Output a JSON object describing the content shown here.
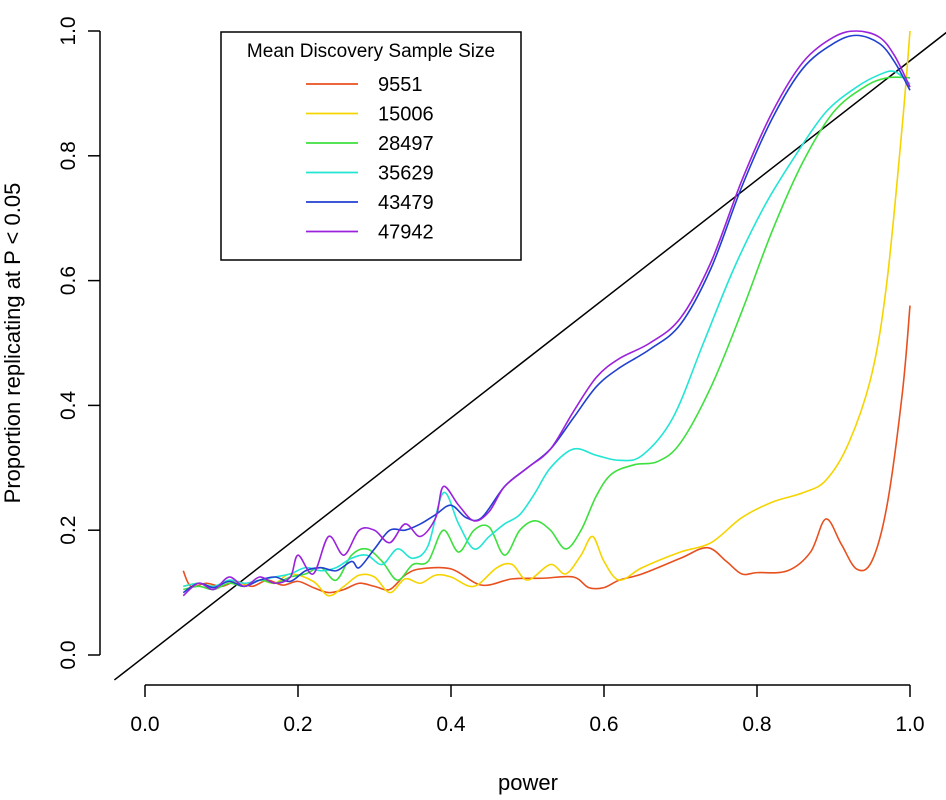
{
  "chart_data": {
    "type": "line",
    "title": "",
    "xlabel": "power",
    "ylabel": "Proportion replicating at P < 0.05",
    "xlim": [
      0.0,
      1.0
    ],
    "ylim": [
      0.0,
      1.0
    ],
    "x_ticks": [
      "0.0",
      "0.2",
      "0.4",
      "0.6",
      "0.8",
      "1.0"
    ],
    "y_ticks": [
      "0.0",
      "0.2",
      "0.4",
      "0.6",
      "0.8",
      "1.0"
    ],
    "grid": false,
    "legend": {
      "title": "Mean Discovery Sample Size",
      "placement": "top-left"
    },
    "reference_line": {
      "label": "",
      "from": [
        -0.04,
        -0.04
      ],
      "to": [
        1.05,
        1.0
      ],
      "color": "#000000"
    },
    "series": [
      {
        "name": "9551",
        "color": "#e8501f",
        "points": [
          [
            0.05,
            0.135
          ],
          [
            0.06,
            0.11
          ],
          [
            0.08,
            0.115
          ],
          [
            0.1,
            0.11
          ],
          [
            0.12,
            0.118
          ],
          [
            0.14,
            0.11
          ],
          [
            0.16,
            0.12
          ],
          [
            0.18,
            0.112
          ],
          [
            0.2,
            0.118
          ],
          [
            0.22,
            0.108
          ],
          [
            0.24,
            0.1
          ],
          [
            0.26,
            0.105
          ],
          [
            0.28,
            0.115
          ],
          [
            0.3,
            0.11
          ],
          [
            0.32,
            0.105
          ],
          [
            0.34,
            0.128
          ],
          [
            0.36,
            0.138
          ],
          [
            0.4,
            0.138
          ],
          [
            0.44,
            0.112
          ],
          [
            0.48,
            0.122
          ],
          [
            0.52,
            0.123
          ],
          [
            0.56,
            0.125
          ],
          [
            0.58,
            0.108
          ],
          [
            0.6,
            0.108
          ],
          [
            0.62,
            0.12
          ],
          [
            0.65,
            0.13
          ],
          [
            0.7,
            0.155
          ],
          [
            0.735,
            0.172
          ],
          [
            0.76,
            0.15
          ],
          [
            0.78,
            0.13
          ],
          [
            0.8,
            0.132
          ],
          [
            0.84,
            0.135
          ],
          [
            0.87,
            0.165
          ],
          [
            0.89,
            0.218
          ],
          [
            0.91,
            0.178
          ],
          [
            0.93,
            0.138
          ],
          [
            0.95,
            0.15
          ],
          [
            0.97,
            0.24
          ],
          [
            0.99,
            0.42
          ],
          [
            1.0,
            0.56
          ]
        ]
      },
      {
        "name": "15006",
        "color": "#f5d400",
        "points": [
          [
            0.05,
            0.11
          ],
          [
            0.07,
            0.115
          ],
          [
            0.09,
            0.11
          ],
          [
            0.11,
            0.118
          ],
          [
            0.13,
            0.112
          ],
          [
            0.15,
            0.12
          ],
          [
            0.17,
            0.115
          ],
          [
            0.19,
            0.13
          ],
          [
            0.22,
            0.118
          ],
          [
            0.24,
            0.095
          ],
          [
            0.26,
            0.11
          ],
          [
            0.28,
            0.128
          ],
          [
            0.3,
            0.125
          ],
          [
            0.32,
            0.1
          ],
          [
            0.34,
            0.122
          ],
          [
            0.36,
            0.115
          ],
          [
            0.38,
            0.128
          ],
          [
            0.4,
            0.125
          ],
          [
            0.43,
            0.11
          ],
          [
            0.46,
            0.14
          ],
          [
            0.48,
            0.145
          ],
          [
            0.5,
            0.12
          ],
          [
            0.53,
            0.145
          ],
          [
            0.55,
            0.13
          ],
          [
            0.57,
            0.16
          ],
          [
            0.585,
            0.19
          ],
          [
            0.6,
            0.15
          ],
          [
            0.62,
            0.12
          ],
          [
            0.65,
            0.14
          ],
          [
            0.7,
            0.165
          ],
          [
            0.74,
            0.18
          ],
          [
            0.78,
            0.22
          ],
          [
            0.82,
            0.245
          ],
          [
            0.86,
            0.26
          ],
          [
            0.89,
            0.28
          ],
          [
            0.92,
            0.34
          ],
          [
            0.95,
            0.45
          ],
          [
            0.97,
            0.6
          ],
          [
            0.99,
            0.85
          ],
          [
            1.0,
            1.0
          ]
        ]
      },
      {
        "name": "28497",
        "color": "#3ee03e",
        "points": [
          [
            0.05,
            0.105
          ],
          [
            0.07,
            0.11
          ],
          [
            0.09,
            0.105
          ],
          [
            0.11,
            0.115
          ],
          [
            0.13,
            0.11
          ],
          [
            0.15,
            0.12
          ],
          [
            0.17,
            0.115
          ],
          [
            0.19,
            0.125
          ],
          [
            0.21,
            0.13
          ],
          [
            0.23,
            0.14
          ],
          [
            0.25,
            0.12
          ],
          [
            0.27,
            0.16
          ],
          [
            0.29,
            0.17
          ],
          [
            0.31,
            0.15
          ],
          [
            0.33,
            0.12
          ],
          [
            0.35,
            0.145
          ],
          [
            0.37,
            0.15
          ],
          [
            0.39,
            0.2
          ],
          [
            0.41,
            0.165
          ],
          [
            0.43,
            0.2
          ],
          [
            0.45,
            0.205
          ],
          [
            0.47,
            0.16
          ],
          [
            0.49,
            0.2
          ],
          [
            0.51,
            0.215
          ],
          [
            0.53,
            0.2
          ],
          [
            0.55,
            0.17
          ],
          [
            0.57,
            0.2
          ],
          [
            0.59,
            0.255
          ],
          [
            0.61,
            0.29
          ],
          [
            0.64,
            0.305
          ],
          [
            0.67,
            0.31
          ],
          [
            0.7,
            0.34
          ],
          [
            0.74,
            0.43
          ],
          [
            0.78,
            0.55
          ],
          [
            0.82,
            0.68
          ],
          [
            0.86,
            0.79
          ],
          [
            0.9,
            0.87
          ],
          [
            0.94,
            0.91
          ],
          [
            0.97,
            0.925
          ],
          [
            1.0,
            0.925
          ]
        ]
      },
      {
        "name": "35629",
        "color": "#22e5d4",
        "points": [
          [
            0.05,
            0.11
          ],
          [
            0.07,
            0.115
          ],
          [
            0.09,
            0.11
          ],
          [
            0.11,
            0.12
          ],
          [
            0.13,
            0.115
          ],
          [
            0.15,
            0.12
          ],
          [
            0.17,
            0.125
          ],
          [
            0.19,
            0.13
          ],
          [
            0.21,
            0.14
          ],
          [
            0.23,
            0.135
          ],
          [
            0.25,
            0.14
          ],
          [
            0.27,
            0.155
          ],
          [
            0.29,
            0.16
          ],
          [
            0.31,
            0.145
          ],
          [
            0.33,
            0.17
          ],
          [
            0.35,
            0.155
          ],
          [
            0.37,
            0.175
          ],
          [
            0.39,
            0.26
          ],
          [
            0.41,
            0.21
          ],
          [
            0.43,
            0.17
          ],
          [
            0.45,
            0.19
          ],
          [
            0.47,
            0.21
          ],
          [
            0.49,
            0.225
          ],
          [
            0.51,
            0.26
          ],
          [
            0.53,
            0.3
          ],
          [
            0.56,
            0.33
          ],
          [
            0.59,
            0.32
          ],
          [
            0.62,
            0.312
          ],
          [
            0.65,
            0.32
          ],
          [
            0.69,
            0.38
          ],
          [
            0.73,
            0.5
          ],
          [
            0.77,
            0.62
          ],
          [
            0.81,
            0.72
          ],
          [
            0.85,
            0.8
          ],
          [
            0.89,
            0.87
          ],
          [
            0.93,
            0.91
          ],
          [
            0.96,
            0.93
          ],
          [
            0.98,
            0.935
          ],
          [
            1.0,
            0.915
          ]
        ]
      },
      {
        "name": "43479",
        "color": "#2040d0",
        "points": [
          [
            0.05,
            0.1
          ],
          [
            0.07,
            0.115
          ],
          [
            0.09,
            0.108
          ],
          [
            0.11,
            0.118
          ],
          [
            0.13,
            0.11
          ],
          [
            0.15,
            0.12
          ],
          [
            0.17,
            0.125
          ],
          [
            0.19,
            0.118
          ],
          [
            0.21,
            0.135
          ],
          [
            0.23,
            0.14
          ],
          [
            0.25,
            0.135
          ],
          [
            0.27,
            0.15
          ],
          [
            0.28,
            0.14
          ],
          [
            0.3,
            0.17
          ],
          [
            0.32,
            0.2
          ],
          [
            0.34,
            0.2
          ],
          [
            0.36,
            0.21
          ],
          [
            0.38,
            0.225
          ],
          [
            0.4,
            0.24
          ],
          [
            0.42,
            0.22
          ],
          [
            0.44,
            0.22
          ],
          [
            0.47,
            0.27
          ],
          [
            0.5,
            0.3
          ],
          [
            0.53,
            0.33
          ],
          [
            0.56,
            0.38
          ],
          [
            0.59,
            0.43
          ],
          [
            0.62,
            0.46
          ],
          [
            0.66,
            0.49
          ],
          [
            0.7,
            0.53
          ],
          [
            0.74,
            0.62
          ],
          [
            0.78,
            0.75
          ],
          [
            0.82,
            0.86
          ],
          [
            0.86,
            0.94
          ],
          [
            0.9,
            0.98
          ],
          [
            0.93,
            0.993
          ],
          [
            0.96,
            0.98
          ],
          [
            0.98,
            0.95
          ],
          [
            1.0,
            0.905
          ]
        ]
      },
      {
        "name": "47942",
        "color": "#9b22dc",
        "points": [
          [
            0.05,
            0.095
          ],
          [
            0.07,
            0.115
          ],
          [
            0.09,
            0.105
          ],
          [
            0.11,
            0.125
          ],
          [
            0.13,
            0.11
          ],
          [
            0.15,
            0.125
          ],
          [
            0.17,
            0.115
          ],
          [
            0.19,
            0.125
          ],
          [
            0.2,
            0.16
          ],
          [
            0.22,
            0.13
          ],
          [
            0.24,
            0.19
          ],
          [
            0.26,
            0.16
          ],
          [
            0.28,
            0.2
          ],
          [
            0.3,
            0.2
          ],
          [
            0.32,
            0.18
          ],
          [
            0.34,
            0.21
          ],
          [
            0.36,
            0.19
          ],
          [
            0.38,
            0.22
          ],
          [
            0.39,
            0.27
          ],
          [
            0.41,
            0.24
          ],
          [
            0.43,
            0.215
          ],
          [
            0.45,
            0.23
          ],
          [
            0.47,
            0.27
          ],
          [
            0.5,
            0.3
          ],
          [
            0.53,
            0.33
          ],
          [
            0.56,
            0.39
          ],
          [
            0.59,
            0.445
          ],
          [
            0.62,
            0.475
          ],
          [
            0.66,
            0.5
          ],
          [
            0.7,
            0.54
          ],
          [
            0.74,
            0.63
          ],
          [
            0.78,
            0.76
          ],
          [
            0.82,
            0.87
          ],
          [
            0.86,
            0.95
          ],
          [
            0.9,
            0.99
          ],
          [
            0.93,
            1.0
          ],
          [
            0.96,
            0.99
          ],
          [
            0.98,
            0.96
          ],
          [
            1.0,
            0.91
          ]
        ]
      }
    ]
  }
}
